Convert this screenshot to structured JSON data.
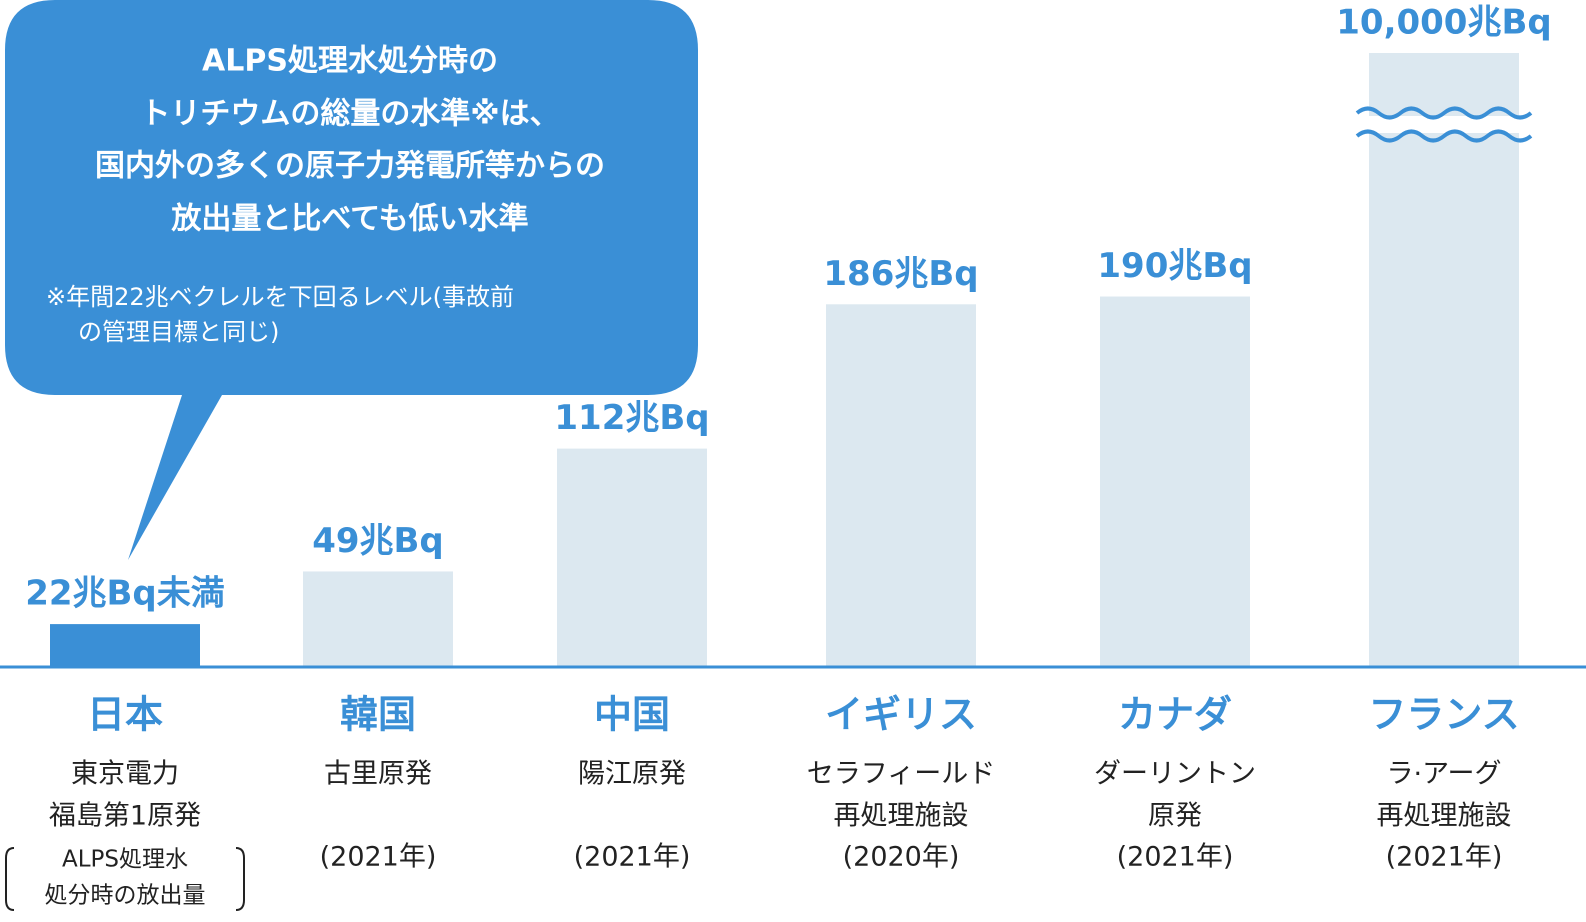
{
  "callout": {
    "lines": [
      "ALPS処理水処分時の",
      "トリチウムの総量の水準※は、",
      "国内外の多くの原子力発電所等からの",
      "放出量と比べても低い水準"
    ],
    "note": [
      "※年間22兆ベクレルを下回るレベル(事故前",
      "の管理目標と同じ)"
    ]
  },
  "chart_data": {
    "type": "bar",
    "categories": [
      "日本",
      "韓国",
      "中国",
      "イギリス",
      "カナダ",
      "フランス"
    ],
    "facilities": [
      [
        "東京電力",
        "福島第1原発"
      ],
      [
        "古里原発"
      ],
      [
        "陽江原発"
      ],
      [
        "セラフィールド",
        "再処理施設"
      ],
      [
        "ダーリントン",
        "原発"
      ],
      [
        "ラ·アーグ",
        "再処理施設"
      ]
    ],
    "years": [
      null,
      "(2021年)",
      "(2021年)",
      "(2020年)",
      "(2021年)",
      "(2021年)"
    ],
    "notes": [
      [
        "ALPS処理水",
        "処分時の放出量"
      ],
      null,
      null,
      null,
      null,
      null
    ],
    "values": [
      22,
      49,
      112,
      186,
      190,
      10000
    ],
    "value_labels": [
      "22兆Bq未満",
      "49兆Bq",
      "112兆Bq",
      "186兆Bq",
      "190兆Bq",
      "10,000兆Bq"
    ],
    "colors": [
      "#3a8fd6",
      "#dce8f0",
      "#dce8f0",
      "#dce8f0",
      "#dce8f0",
      "#dce8f0"
    ],
    "axis_break": true
  }
}
